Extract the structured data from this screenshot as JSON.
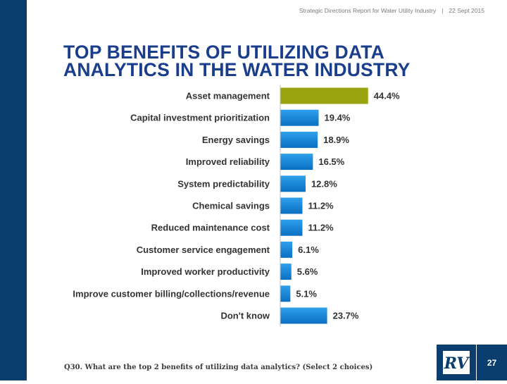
{
  "header": {
    "report_title": "Strategic Directions Report for Water Utility Industry",
    "separator": "|",
    "date": "22 Sept 2015"
  },
  "title": "TOP BENEFITS OF UTILIZING DATA ANALYTICS IN THE WATER INDUSTRY",
  "footnote": "Q30. What are the top 2 benefits of utilizing data analytics? (Select 2 choices)",
  "page_number": "27",
  "logo": {
    "icon": "rv-logo",
    "text": "RV"
  },
  "colors": {
    "sidebar": "#0b3d6e",
    "title": "#1a3e8c",
    "highlight_bar": "#9aa40e",
    "bar_top": "#2ea0ec",
    "bar_bottom": "#0a6fc2"
  },
  "chart_data": {
    "type": "bar",
    "orientation": "horizontal",
    "categories": [
      "Asset management",
      "Capital investment prioritization",
      "Energy savings",
      "Improved reliability",
      "System predictability",
      "Chemical savings",
      "Reduced maintenance cost",
      "Customer service engagement",
      "Improved worker productivity",
      "Improve customer billing/collections/revenue",
      "Don't know"
    ],
    "values": [
      44.4,
      19.4,
      18.9,
      16.5,
      12.8,
      11.2,
      11.2,
      6.1,
      5.6,
      5.1,
      23.7
    ],
    "value_labels": [
      "44.4%",
      "19.4%",
      "18.9%",
      "16.5%",
      "12.8%",
      "11.2%",
      "11.2%",
      "6.1%",
      "5.6%",
      "5.1%",
      "23.7%"
    ],
    "highlight_index": 0,
    "xlim": [
      0,
      100
    ],
    "grid": false
  }
}
